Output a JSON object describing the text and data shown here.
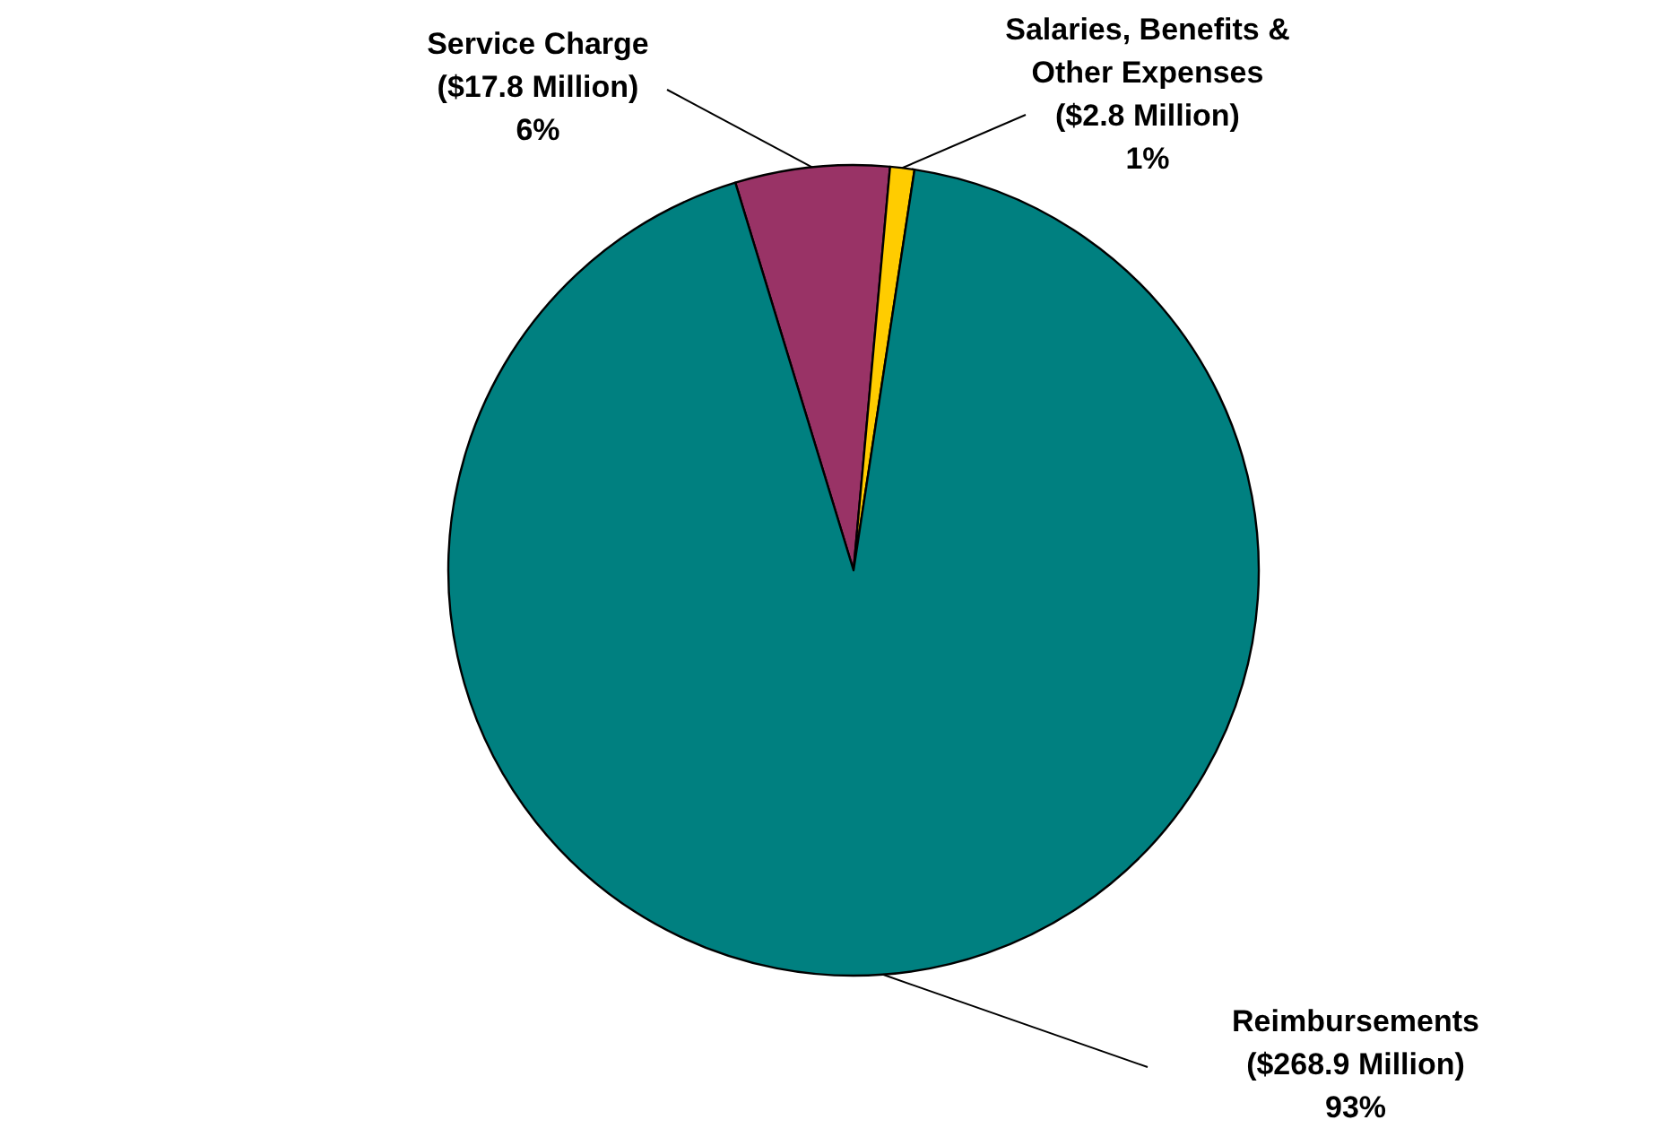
{
  "chart_data": {
    "type": "pie",
    "categories": [
      "Service Charge",
      "Salaries, Benefits & Other Expenses",
      "Reimbursements"
    ],
    "values": [
      17.8,
      2.8,
      268.9
    ],
    "colors": [
      "#993366",
      "#ffcc00",
      "#008080"
    ],
    "value_labels": [
      "($17.8 Million)\n6%",
      "($2.8 Million)\n1%",
      "($268.9 Million)\n93%"
    ]
  }
}
